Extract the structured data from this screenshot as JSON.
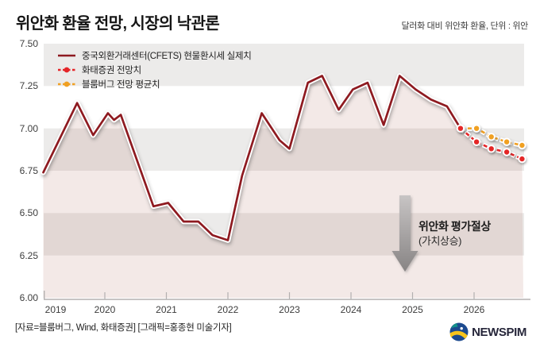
{
  "header": {
    "title": "위안화 환율 전망, 시장의 낙관론",
    "subtitle": "달러화 대비 위안화 환율, 단위 : 위안"
  },
  "chart_data": {
    "type": "line",
    "title": "위안화 환율 전망, 시장의 낙관론",
    "unit_note": "달러화 대비 위안화 환율, 단위 : 위안",
    "ylim": [
      6.0,
      7.5
    ],
    "xlim": [
      2019,
      2026.9
    ],
    "y_ticks": [
      "7.50",
      "7.25",
      "7.00",
      "6.75",
      "6.50",
      "6.25",
      "6.00"
    ],
    "x_ticks": [
      "2019",
      "2020",
      "2021",
      "2022",
      "2023",
      "2024",
      "2025",
      "2026"
    ],
    "grid": "alternating-bands",
    "legend_position": "top-left",
    "series": [
      {
        "name": "중국외환거래센터(CFETS) 현물환시세 실제치",
        "style": "solid",
        "color": "#8e1a20",
        "points": [
          [
            2019.0,
            6.74
          ],
          [
            2019.55,
            7.15
          ],
          [
            2019.81,
            6.96
          ],
          [
            2020.05,
            7.09
          ],
          [
            2020.15,
            7.05
          ],
          [
            2020.26,
            7.08
          ],
          [
            2020.79,
            6.54
          ],
          [
            2021.03,
            6.56
          ],
          [
            2021.28,
            6.45
          ],
          [
            2021.52,
            6.45
          ],
          [
            2021.75,
            6.37
          ],
          [
            2022.0,
            6.34
          ],
          [
            2022.23,
            6.72
          ],
          [
            2022.55,
            7.09
          ],
          [
            2022.84,
            6.93
          ],
          [
            2023.0,
            6.88
          ],
          [
            2023.3,
            7.27
          ],
          [
            2023.53,
            7.31
          ],
          [
            2023.8,
            7.11
          ],
          [
            2024.03,
            7.23
          ],
          [
            2024.27,
            7.27
          ],
          [
            2024.53,
            7.02
          ],
          [
            2024.79,
            7.31
          ],
          [
            2025.05,
            7.23
          ],
          [
            2025.3,
            7.17
          ],
          [
            2025.56,
            7.13
          ],
          [
            2025.78,
            7.0
          ]
        ]
      },
      {
        "name": "화태증권 전망치",
        "style": "dashed-dot",
        "color": "#e42528",
        "points": [
          [
            2025.78,
            7.0
          ],
          [
            2026.04,
            6.92
          ],
          [
            2026.28,
            6.88
          ],
          [
            2026.53,
            6.86
          ],
          [
            2026.78,
            6.82
          ]
        ]
      },
      {
        "name": "블룸버그 전망 평균치",
        "style": "dashed-dot",
        "color": "#f0a023",
        "points": [
          [
            2025.78,
            7.0
          ],
          [
            2026.04,
            7.0
          ],
          [
            2026.28,
            6.95
          ],
          [
            2026.53,
            6.92
          ],
          [
            2026.78,
            6.9
          ]
        ]
      }
    ],
    "annotation": {
      "line1": "위안화 평가절상",
      "line2": "(가치상승)",
      "arrow": "down"
    },
    "colors": {
      "band_gray": "#ecebea",
      "area_fill": "rgba(163,82,71,0.13)",
      "actual_line": "#8e1a20",
      "huatai": "#e42528",
      "bloomberg": "#f0a023",
      "axis": "#b3b0b0"
    }
  },
  "footer": {
    "source": "[자료=블룸버그, Wind, 화태증권] [그래픽=홍종현 미술기자]",
    "logo_text": "NEWSPIM"
  }
}
